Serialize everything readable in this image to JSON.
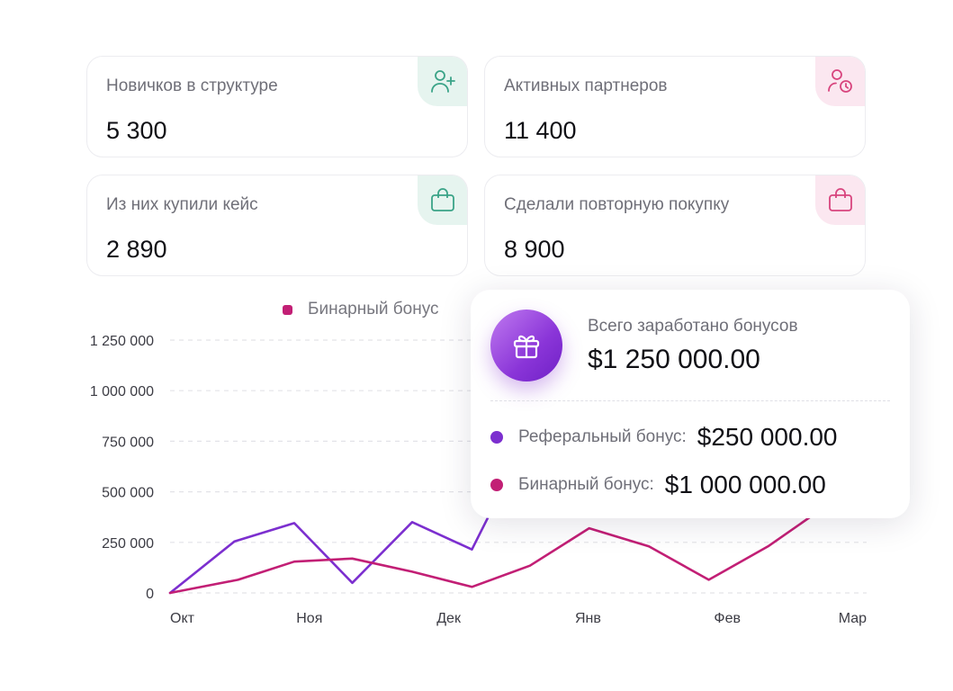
{
  "cards": [
    {
      "label": "Новичков в структуре",
      "value": "5 300",
      "icon": "user-plus-icon",
      "tint": "green"
    },
    {
      "label": "Активных партнеров",
      "value": "11 400",
      "icon": "user-clock-icon",
      "tint": "pink"
    },
    {
      "label": "Из них купили кейс",
      "value": "2 890",
      "icon": "shopping-bag-icon",
      "tint": "green"
    },
    {
      "label": "Сделали повторную покупку",
      "value": "8 900",
      "icon": "shopping-bag-icon",
      "tint": "pink"
    }
  ],
  "colors": {
    "referral": "#7c2fcf",
    "binary": "#c21f75",
    "green_icon": "#3aa387",
    "pink_icon": "#d8457e"
  },
  "summary": {
    "title": "Всего заработано бонусов",
    "total": "$1 250 000.00",
    "icon": "gift-icon",
    "rows": [
      {
        "label": "Реферальный бонус:",
        "value": "$250 000.00"
      },
      {
        "label": "Бинарный бонус:",
        "value": "$1 000 000.00"
      }
    ]
  },
  "chart_data": {
    "type": "line",
    "legend": [
      "Бинарный бонус"
    ],
    "grid": true,
    "ylim": [
      0,
      1250000
    ],
    "y_ticks": [
      0,
      250000,
      500000,
      750000,
      1000000,
      1250000
    ],
    "y_tick_labels": [
      "0",
      "250 000",
      "500 000",
      "750 000",
      "1 000 000",
      "1 250 000"
    ],
    "x_range": [
      0,
      12
    ],
    "x_tick_positions": [
      0,
      2.4,
      4.8,
      7.2,
      9.6,
      12
    ],
    "x_tick_labels": [
      "Окт",
      "Ноя",
      "Дек",
      "Янв",
      "Фев",
      "Мар"
    ],
    "series": [
      {
        "name": "Реферальный бонус",
        "points": [
          [
            0,
            0
          ],
          [
            1.11,
            255000
          ],
          [
            2.14,
            345000
          ],
          [
            3.14,
            50000
          ],
          [
            4.17,
            350000
          ],
          [
            5.2,
            215000
          ],
          [
            5.55,
            415000
          ]
        ]
      },
      {
        "name": "Бинарный бонус",
        "points": [
          [
            0,
            0
          ],
          [
            1.17,
            65000
          ],
          [
            2.14,
            155000
          ],
          [
            3.14,
            170000
          ],
          [
            4.17,
            105000
          ],
          [
            5.2,
            30000
          ],
          [
            6.2,
            135000
          ],
          [
            7.22,
            320000
          ],
          [
            8.25,
            230000
          ],
          [
            9.28,
            65000
          ],
          [
            10.3,
            230000
          ],
          [
            11.15,
            400000
          ]
        ]
      }
    ]
  }
}
